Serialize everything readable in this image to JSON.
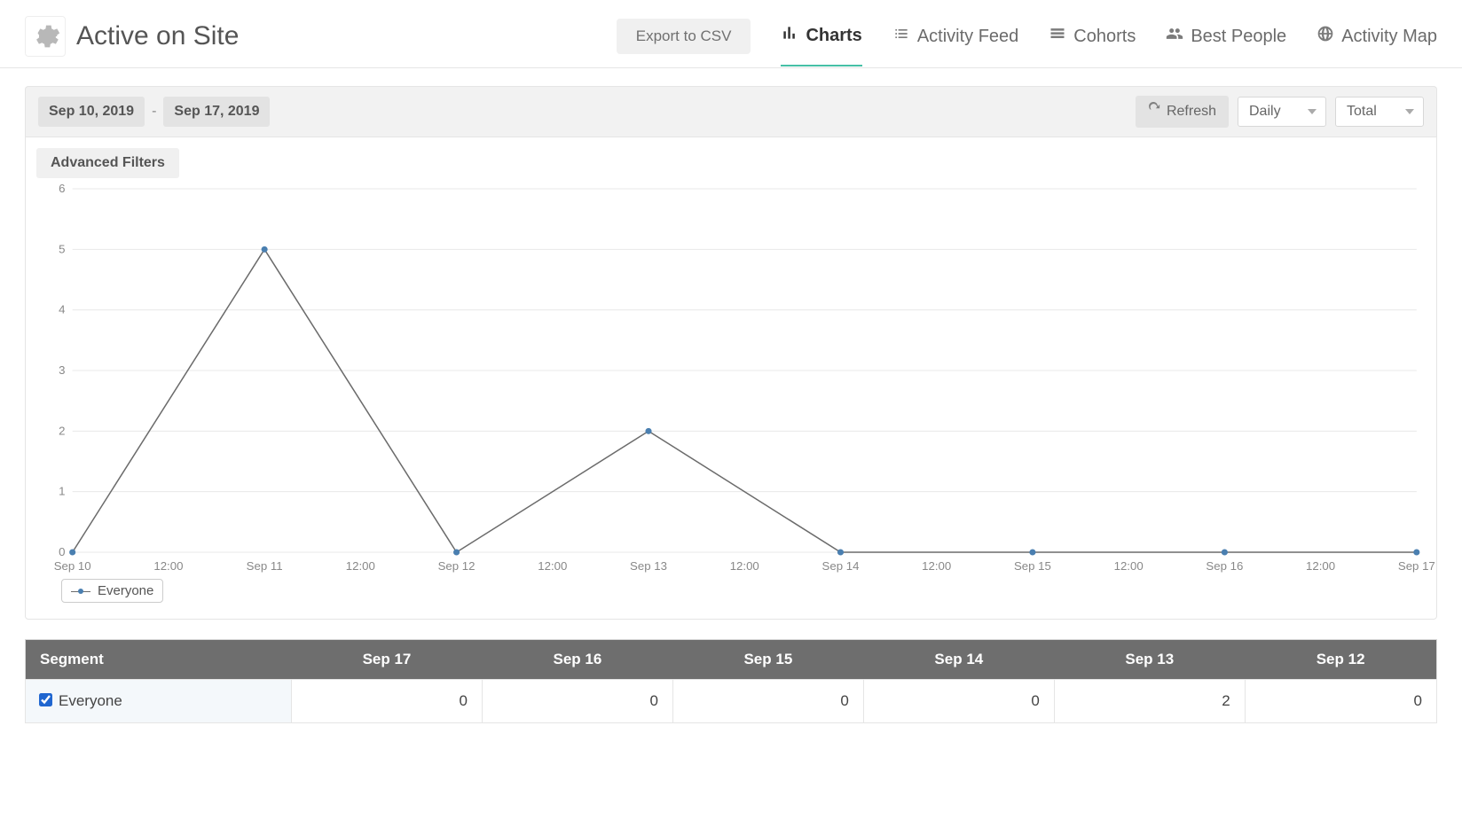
{
  "header": {
    "title": "Active on Site",
    "export_label": "Export to CSV",
    "nav": [
      {
        "label": "Charts",
        "active": true
      },
      {
        "label": "Activity Feed",
        "active": false
      },
      {
        "label": "Cohorts",
        "active": false
      },
      {
        "label": "Best People",
        "active": false
      },
      {
        "label": "Activity Map",
        "active": false
      }
    ]
  },
  "toolbar": {
    "date_from": "Sep 10, 2019",
    "date_to": "Sep 17, 2019",
    "refresh_label": "Refresh",
    "granularity": "Daily",
    "aggregation": "Total",
    "advanced_filters_label": "Advanced Filters"
  },
  "chart": {
    "type": "line",
    "ylim": [
      0,
      6
    ],
    "ytick_step": 1,
    "yticks": [
      0,
      1,
      2,
      3,
      4,
      5,
      6
    ],
    "x_labels": [
      "Sep 10",
      "12:00",
      "Sep 11",
      "12:00",
      "Sep 12",
      "12:00",
      "Sep 13",
      "12:00",
      "Sep 14",
      "12:00",
      "Sep 15",
      "12:00",
      "Sep 16",
      "12:00",
      "Sep 17"
    ],
    "series": [
      {
        "name": "Everyone",
        "color_line": "#6b6b6b",
        "color_marker": "#4a7fb0",
        "points": [
          {
            "x": 0,
            "y": 0
          },
          {
            "x": 2,
            "y": 5
          },
          {
            "x": 4,
            "y": 0
          },
          {
            "x": 6,
            "y": 2
          },
          {
            "x": 8,
            "y": 0
          },
          {
            "x": 10,
            "y": 0
          },
          {
            "x": 12,
            "y": 0
          },
          {
            "x": 14,
            "y": 0
          }
        ]
      }
    ],
    "grid_color": "#e8e8e8",
    "axis_label_color": "#888888",
    "label_fontsize": 13
  },
  "legend": {
    "label": "Everyone"
  },
  "table": {
    "columns": [
      "Segment",
      "Sep 17",
      "Sep 16",
      "Sep 15",
      "Sep 14",
      "Sep 13",
      "Sep 12"
    ],
    "rows": [
      {
        "segment": "Everyone",
        "checked": true,
        "values": [
          0,
          0,
          0,
          0,
          2,
          0
        ]
      }
    ],
    "header_bg": "#6e6e6e",
    "header_fg": "#ffffff"
  }
}
